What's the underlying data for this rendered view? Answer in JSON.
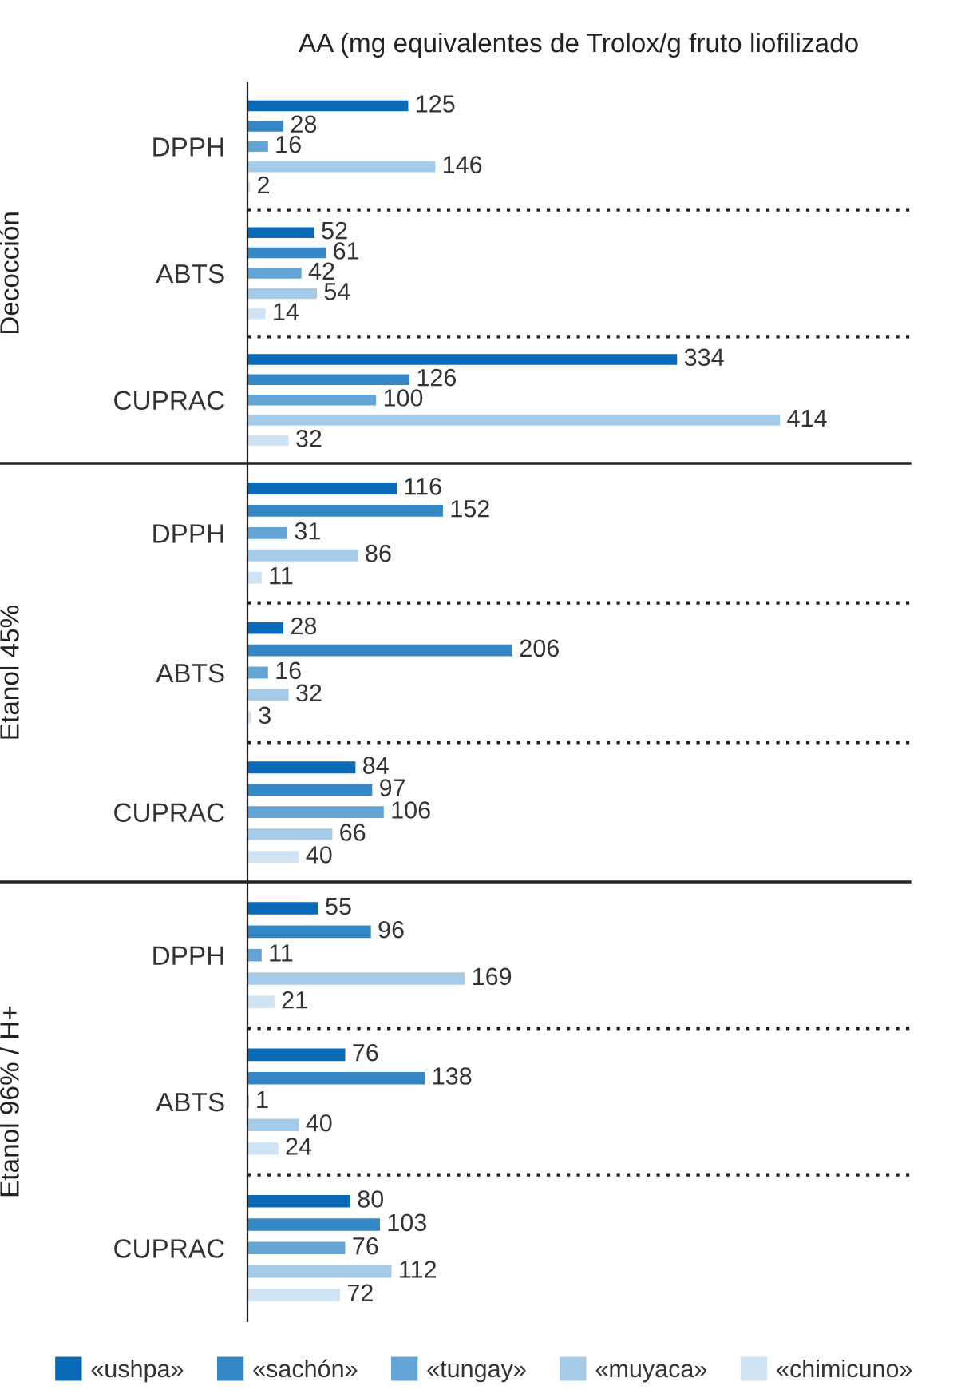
{
  "chart_data": [
    {
      "type": "bar",
      "orientation": "horizontal",
      "title": "AA (mg equivalentes de Trolox/g fruto liofilizado",
      "ylabel": "Decocción",
      "categories": [
        "DPPH",
        "ABTS",
        "CUPRAC"
      ],
      "xlim": [
        0,
        515
      ],
      "tick_labels": "y",
      "data_labels": true,
      "legend": false,
      "series": [
        {
          "color": "#0b6ab7",
          "values": [
            125,
            52,
            334
          ]
        },
        {
          "color": "#3488c6",
          "values": [
            28,
            61,
            126
          ]
        },
        {
          "color": "#63a5d4",
          "values": [
            16,
            42,
            100
          ]
        },
        {
          "color": "#a5cbe8",
          "values": [
            146,
            54,
            414
          ]
        },
        {
          "color": "#cfe3f3",
          "values": [
            2,
            14,
            32
          ]
        }
      ]
    },
    {
      "type": "bar",
      "orientation": "horizontal",
      "ylabel": "Etanol 45%",
      "categories": [
        "DPPH",
        "ABTS",
        "CUPRAC"
      ],
      "xlim": [
        0,
        515
      ],
      "tick_labels": "y",
      "data_labels": true,
      "legend": false,
      "series": [
        {
          "color": "#0b6ab7",
          "values": [
            116,
            28,
            84
          ]
        },
        {
          "color": "#3488c6",
          "values": [
            152,
            206,
            97
          ]
        },
        {
          "color": "#63a5d4",
          "values": [
            31,
            16,
            106
          ]
        },
        {
          "color": "#a5cbe8",
          "values": [
            86,
            32,
            66
          ]
        },
        {
          "color": "#cfe3f3",
          "values": [
            11,
            3,
            40
          ]
        }
      ]
    },
    {
      "type": "bar",
      "orientation": "horizontal",
      "ylabel": "Etanol 96% / H+",
      "categories": [
        "DPPH",
        "ABTS",
        "CUPRAC"
      ],
      "xlim": [
        0,
        515
      ],
      "tick_labels": "y",
      "data_labels": true,
      "legend": "bottom",
      "series": [
        {
          "name": "«ushpa»",
          "color": "#0b6ab7",
          "values": [
            55,
            76,
            80
          ]
        },
        {
          "name": "«sachón»",
          "color": "#3488c6",
          "values": [
            96,
            138,
            103
          ]
        },
        {
          "name": "«tungay»",
          "color": "#63a5d4",
          "values": [
            11,
            1,
            76
          ]
        },
        {
          "name": "«muyaca»",
          "color": "#a5cbe8",
          "values": [
            169,
            40,
            112
          ]
        },
        {
          "name": "«chimicuno»",
          "color": "#cfe3f3",
          "values": [
            21,
            24,
            72
          ]
        }
      ]
    }
  ]
}
